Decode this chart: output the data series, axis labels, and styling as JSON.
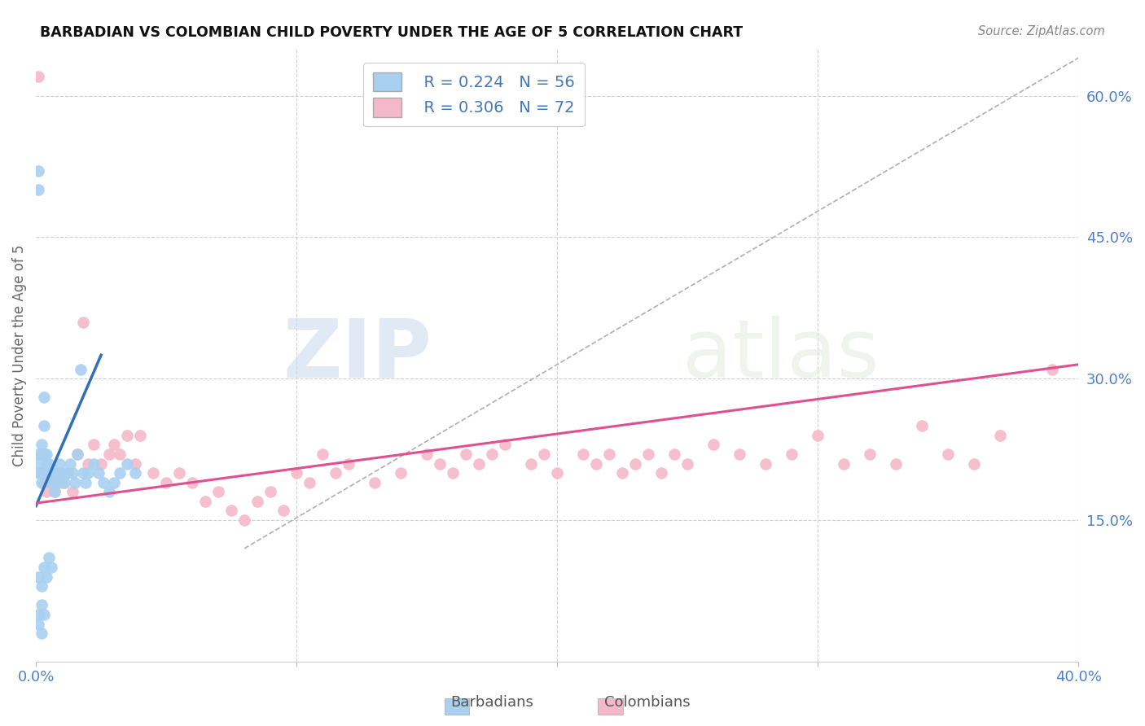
{
  "title": "BARBADIAN VS COLOMBIAN CHILD POVERTY UNDER THE AGE OF 5 CORRELATION CHART",
  "source": "Source: ZipAtlas.com",
  "ylabel": "Child Poverty Under the Age of 5",
  "xmin": 0.0,
  "xmax": 0.4,
  "ymin": 0.0,
  "ymax": 0.65,
  "xticks": [
    0.0,
    0.1,
    0.2,
    0.3,
    0.4
  ],
  "xticklabels": [
    "0.0%",
    "",
    "",
    "",
    "40.0%"
  ],
  "yticks_right": [
    0.15,
    0.3,
    0.45,
    0.6
  ],
  "ytick_labels_right": [
    "15.0%",
    "30.0%",
    "45.0%",
    "60.0%"
  ],
  "legend_r_blue": "R = 0.224",
  "legend_n_blue": "N = 56",
  "legend_r_pink": "R = 0.306",
  "legend_n_pink": "N = 72",
  "blue_color": "#a8d0f0",
  "pink_color": "#f5b8c8",
  "blue_line_color": "#3070b8",
  "pink_line_color": "#e05090",
  "grid_color": "#d0d0d0",
  "background_color": "#ffffff",
  "barbadian_x": [
    0.001,
    0.001,
    0.001,
    0.001,
    0.001,
    0.002,
    0.002,
    0.002,
    0.002,
    0.003,
    0.003,
    0.003,
    0.003,
    0.004,
    0.004,
    0.004,
    0.005,
    0.005,
    0.006,
    0.006,
    0.007,
    0.007,
    0.008,
    0.008,
    0.009,
    0.009,
    0.01,
    0.011,
    0.012,
    0.013,
    0.014,
    0.015,
    0.016,
    0.017,
    0.018,
    0.019,
    0.02,
    0.022,
    0.024,
    0.026,
    0.028,
    0.03,
    0.032,
    0.035,
    0.038,
    0.001,
    0.002,
    0.003,
    0.004,
    0.005,
    0.006,
    0.001,
    0.002,
    0.003,
    0.001,
    0.002
  ],
  "barbadian_y": [
    0.52,
    0.5,
    0.22,
    0.21,
    0.2,
    0.23,
    0.22,
    0.2,
    0.19,
    0.28,
    0.25,
    0.22,
    0.2,
    0.22,
    0.21,
    0.2,
    0.21,
    0.2,
    0.2,
    0.19,
    0.19,
    0.18,
    0.2,
    0.19,
    0.21,
    0.2,
    0.2,
    0.19,
    0.2,
    0.21,
    0.2,
    0.19,
    0.22,
    0.31,
    0.2,
    0.19,
    0.2,
    0.21,
    0.2,
    0.19,
    0.18,
    0.19,
    0.2,
    0.21,
    0.2,
    0.09,
    0.08,
    0.1,
    0.09,
    0.11,
    0.1,
    0.05,
    0.06,
    0.05,
    0.04,
    0.03
  ],
  "colombian_x": [
    0.001,
    0.002,
    0.003,
    0.004,
    0.005,
    0.006,
    0.007,
    0.008,
    0.01,
    0.012,
    0.014,
    0.016,
    0.018,
    0.02,
    0.022,
    0.025,
    0.028,
    0.03,
    0.032,
    0.035,
    0.038,
    0.04,
    0.045,
    0.05,
    0.055,
    0.06,
    0.065,
    0.07,
    0.075,
    0.08,
    0.085,
    0.09,
    0.095,
    0.1,
    0.105,
    0.11,
    0.115,
    0.12,
    0.13,
    0.14,
    0.15,
    0.155,
    0.16,
    0.165,
    0.17,
    0.175,
    0.18,
    0.19,
    0.195,
    0.2,
    0.21,
    0.215,
    0.22,
    0.225,
    0.23,
    0.235,
    0.24,
    0.245,
    0.25,
    0.26,
    0.27,
    0.28,
    0.29,
    0.3,
    0.31,
    0.32,
    0.33,
    0.34,
    0.35,
    0.36,
    0.37,
    0.39
  ],
  "colombian_y": [
    0.62,
    0.2,
    0.19,
    0.18,
    0.2,
    0.19,
    0.18,
    0.2,
    0.19,
    0.2,
    0.18,
    0.22,
    0.36,
    0.21,
    0.23,
    0.21,
    0.22,
    0.23,
    0.22,
    0.24,
    0.21,
    0.24,
    0.2,
    0.19,
    0.2,
    0.19,
    0.17,
    0.18,
    0.16,
    0.15,
    0.17,
    0.18,
    0.16,
    0.2,
    0.19,
    0.22,
    0.2,
    0.21,
    0.19,
    0.2,
    0.22,
    0.21,
    0.2,
    0.22,
    0.21,
    0.22,
    0.23,
    0.21,
    0.22,
    0.2,
    0.22,
    0.21,
    0.22,
    0.2,
    0.21,
    0.22,
    0.2,
    0.22,
    0.21,
    0.23,
    0.22,
    0.21,
    0.22,
    0.24,
    0.21,
    0.22,
    0.21,
    0.25,
    0.22,
    0.21,
    0.24,
    0.31
  ],
  "blue_line_x": [
    0.0,
    0.025
  ],
  "blue_line_y": [
    0.165,
    0.325
  ],
  "pink_line_x": [
    0.0,
    0.4
  ],
  "pink_line_y": [
    0.168,
    0.315
  ],
  "diag_line_x": [
    0.08,
    0.4
  ],
  "diag_line_y": [
    0.12,
    0.64
  ]
}
